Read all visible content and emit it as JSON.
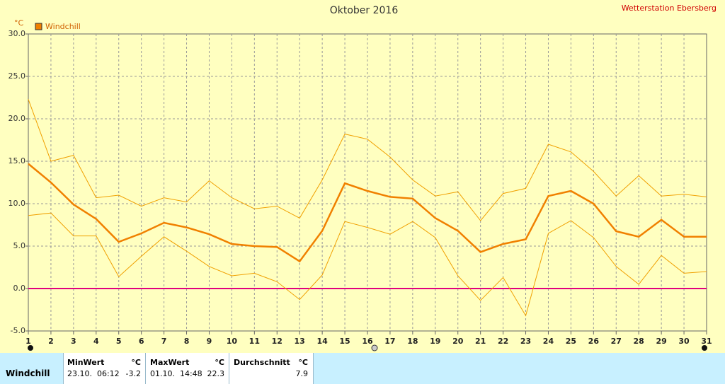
{
  "chart_data": {
    "type": "line",
    "title": "Oktober 2016",
    "source": "Wetterstation Ebersberg",
    "y_label": "°C",
    "categories": [
      1,
      2,
      3,
      4,
      5,
      6,
      7,
      8,
      9,
      10,
      11,
      12,
      13,
      14,
      15,
      16,
      17,
      18,
      19,
      20,
      21,
      22,
      23,
      24,
      25,
      26,
      27,
      28,
      29,
      30,
      31
    ],
    "series": [
      {
        "name": "Windchill",
        "color": "#f08000",
        "values": [
          14.7,
          12.5,
          9.9,
          8.2,
          5.5,
          6.5,
          7.75,
          7.2,
          6.4,
          5.25,
          5.0,
          4.9,
          3.2,
          6.8,
          12.4,
          11.5,
          10.8,
          10.6,
          8.3,
          6.8,
          4.3,
          5.25,
          5.8,
          10.9,
          11.5,
          10.0,
          6.75,
          6.1,
          8.1,
          6.1,
          6.1
        ]
      },
      {
        "color": "#f0a000",
        "values": [
          22.3,
          15.0,
          15.7,
          10.7,
          11.0,
          9.7,
          10.7,
          10.2,
          12.7,
          10.7,
          9.4,
          9.7,
          8.3,
          12.8,
          18.2,
          17.6,
          15.5,
          12.8,
          10.9,
          11.4,
          8.0,
          11.2,
          11.8,
          17.0,
          16.1,
          13.8,
          10.9,
          13.3,
          10.9,
          11.1,
          10.8
        ]
      },
      {
        "color": "#f0a000",
        "values": [
          8.6,
          8.9,
          6.2,
          6.2,
          1.4,
          3.8,
          6.1,
          4.4,
          2.6,
          1.5,
          1.8,
          0.8,
          -1.3,
          1.6,
          7.9,
          7.2,
          6.4,
          7.9,
          6.0,
          1.5,
          -1.4,
          1.3,
          -3.2,
          6.5,
          8.0,
          6.0,
          2.6,
          0.5,
          3.9,
          1.8,
          2.0
        ]
      }
    ],
    "ylim": [
      -5,
      30
    ],
    "yticks": [
      {
        "value": -5,
        "label": "-5.0"
      },
      {
        "value": 0,
        "label": "0.0"
      },
      {
        "value": 5,
        "label": "5.0"
      },
      {
        "value": 10,
        "label": "10.0"
      },
      {
        "value": 15,
        "label": "15.0"
      },
      {
        "value": 20,
        "label": "20.0"
      },
      {
        "value": 25,
        "label": "25.0"
      },
      {
        "value": 30,
        "label": "30.0"
      }
    ],
    "grid": true,
    "legend": "top-left",
    "reference_line": {
      "value": 0,
      "color": "#e0007f"
    }
  },
  "table": {
    "headers": [
      "MinWert",
      "°C",
      "MaxWert",
      "°C",
      "Durchschnitt",
      "°C"
    ],
    "rows": [
      {
        "label": "Windchill",
        "cells": [
          "23.10.  06:12",
          "-3.2",
          "01.10.  14:48",
          "22.3",
          "7.9"
        ]
      }
    ]
  }
}
